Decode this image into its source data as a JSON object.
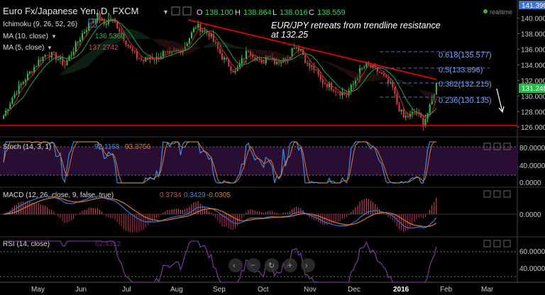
{
  "header": {
    "symbol": "Euro Fx/Japanese Yen, D, FXCM",
    "o_label": "O",
    "o": "138.100",
    "h_label": "H",
    "h": "138.864",
    "l_label": "L",
    "l": "138.016",
    "c_label": "C",
    "c": "138.559",
    "realtime": "realtime"
  },
  "indicators": {
    "ichimoku": "Ichimoku (9, 26, 52, 26)",
    "ma10": "MA (10, close)",
    "ma10_value": "136.5360",
    "ma5": "MA (5, close)",
    "ma5_value": "137.2742"
  },
  "annotation": {
    "line1": "EUR/JPY retreats from trendline resistance",
    "line2": "at 132.25"
  },
  "fib_labels": [
    "0.618(135.577)",
    "0.5(133.896)",
    "0.382(132.215)",
    "0.236(130.135)"
  ],
  "stoch": {
    "label": "Stoch (14, 3, 1)",
    "k": "92.1168",
    "d": "93.3756"
  },
  "macd": {
    "label": "MACD (12, 26, close, 9, false, true)",
    "v1": "0.3734",
    "v2": "0.3429",
    "v3": "-0.0305"
  },
  "rsi": {
    "label": "RSI (14, close)",
    "value": "62.4312"
  },
  "colors": {
    "bg": "#000000",
    "up": "#2db84b",
    "down": "#d23b3b",
    "trend": "#ff0000",
    "fib": "#3d6fd6",
    "stoch_panel": "#2a0d33",
    "rsi_line": "#8a3aa8",
    "macd_blue": "#2f7bd8",
    "macd_orange": "#e0782a",
    "ma10": "#21a84a",
    "ma5": "#c8283a"
  },
  "chart_data": {
    "type": "candlestick",
    "price_axis_ticks": [
      "140.000",
      "138.000",
      "136.000",
      "134.000",
      "132.000",
      "130.000",
      "128.000",
      "126.000"
    ],
    "price_range": [
      125.2,
      141.6
    ],
    "last_price": "131.248",
    "top_price": "141.390",
    "x_axis_labels": [
      "May",
      "Jun",
      "Jul",
      "Aug",
      "Sep",
      "Oct",
      "Nov",
      "Dec",
      "2016",
      "Feb",
      "Mar"
    ],
    "close_path": [
      [
        0,
        127.5
      ],
      [
        4,
        129.8
      ],
      [
        8,
        131.5
      ],
      [
        12,
        133.0
      ],
      [
        16,
        134.5
      ],
      [
        20,
        135.5
      ],
      [
        24,
        135.0
      ],
      [
        28,
        134.0
      ],
      [
        32,
        136.0
      ],
      [
        36,
        138.0
      ],
      [
        40,
        139.5
      ],
      [
        43,
        140.3
      ],
      [
        46,
        139.2
      ],
      [
        49,
        140.0
      ],
      [
        52,
        139.0
      ],
      [
        55,
        137.5
      ],
      [
        58,
        136.0
      ],
      [
        61,
        135.0
      ],
      [
        64,
        134.5
      ],
      [
        67,
        135.0
      ],
      [
        70,
        134.8
      ],
      [
        73,
        135.5
      ],
      [
        76,
        135.2
      ],
      [
        79,
        135.8
      ],
      [
        82,
        136.0
      ],
      [
        85,
        137.5
      ],
      [
        88,
        139.0
      ],
      [
        91,
        138.5
      ],
      [
        94,
        138.0
      ],
      [
        97,
        136.5
      ],
      [
        100,
        135.0
      ],
      [
        103,
        134.0
      ],
      [
        106,
        133.0
      ],
      [
        109,
        134.5
      ],
      [
        112,
        136.0
      ],
      [
        115,
        135.0
      ],
      [
        118,
        134.0
      ],
      [
        121,
        135.5
      ],
      [
        124,
        134.5
      ],
      [
        127,
        134.5
      ],
      [
        130,
        135.0
      ],
      [
        133,
        136.5
      ],
      [
        136,
        136.0
      ],
      [
        139,
        134.0
      ],
      [
        142,
        133.5
      ],
      [
        145,
        132.0
      ],
      [
        148,
        131.5
      ],
      [
        151,
        131.0
      ],
      [
        154,
        130.5
      ],
      [
        157,
        130.2
      ],
      [
        160,
        131.5
      ],
      [
        163,
        133.2
      ],
      [
        166,
        134.0
      ],
      [
        169,
        133.5
      ],
      [
        172,
        133.0
      ],
      [
        175,
        132.0
      ],
      [
        178,
        131.0
      ],
      [
        180,
        129.0
      ],
      [
        183,
        127.2
      ],
      [
        186,
        127.5
      ],
      [
        189,
        128.0
      ],
      [
        192,
        126.5
      ],
      [
        195,
        128.5
      ],
      [
        198,
        131.5
      ]
    ],
    "trendline": [
      [
        265,
        28
      ],
      [
        615,
        112
      ]
    ],
    "support_y": 126.2,
    "stoch_levels": [
      "80.0000",
      "40.0000",
      "0.0000"
    ],
    "macd_levels": [
      "0.0000"
    ],
    "rsi_levels": [
      "60.0000",
      "40.0000"
    ]
  },
  "nav": {
    "buttons": [
      "left",
      "minus",
      "reset",
      "plus",
      "right"
    ]
  }
}
